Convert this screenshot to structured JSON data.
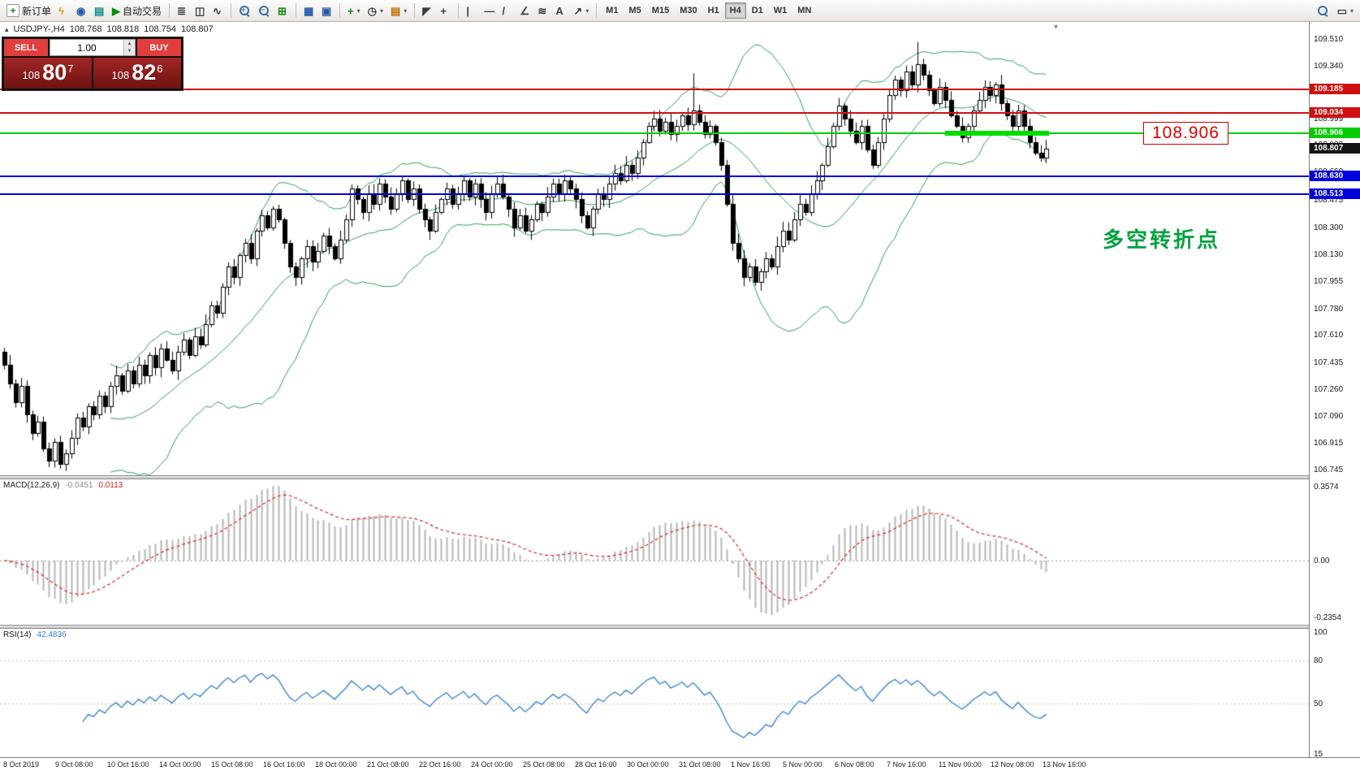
{
  "toolbar": {
    "caret_glyph": "▾",
    "items": [
      {
        "name": "new-order-button",
        "glyph": "+",
        "color": "green",
        "boxed": true,
        "label": "新订单"
      },
      {
        "name": "metaeditor-icon",
        "glyph": "ϟ",
        "color": "yellow"
      },
      {
        "name": "market-watch-icon",
        "glyph": "◉",
        "color": "blue"
      },
      {
        "name": "navigator-icon",
        "glyph": "▤",
        "color": "teal"
      },
      {
        "name": "autotrading-button",
        "glyph": "▶",
        "color": "green",
        "label": "自动交易"
      },
      {
        "sep": true
      },
      {
        "name": "bar-chart-button",
        "glyph": "≣",
        "color": "dark"
      },
      {
        "name": "candlestick-chart-button",
        "glyph": "◫",
        "color": "dark"
      },
      {
        "name": "line-chart-button",
        "glyph": "∿",
        "color": "dark"
      },
      {
        "sep": true
      },
      {
        "name": "zoom-in-button",
        "mag": "+"
      },
      {
        "name": "zoom-out-button",
        "mag": "−"
      },
      {
        "name": "chart-grid-button",
        "glyph": "⊞",
        "color": "green"
      },
      {
        "sep": true
      },
      {
        "name": "tile-windows-button",
        "glyph": "▦",
        "color": "blue"
      },
      {
        "name": "cascade-windows-button",
        "glyph": "▣",
        "color": "blue"
      },
      {
        "sep": true
      },
      {
        "name": "indicators-button",
        "glyph": "+",
        "color": "green",
        "caret": true
      },
      {
        "name": "periods-button",
        "glyph": "◷",
        "color": "dark",
        "caret": true
      },
      {
        "name": "templates-button",
        "glyph": "▤",
        "color": "orange",
        "caret": true
      },
      {
        "sep": true
      },
      {
        "name": "cursor-button",
        "glyph": "◤",
        "color": "dark"
      },
      {
        "name": "crosshair-button",
        "glyph": "+",
        "color": "dark"
      },
      {
        "sep": true
      },
      {
        "name": "vertical-line-button",
        "glyph": "|",
        "color": "dark"
      },
      {
        "name": "horizontal-line-button",
        "glyph": "—",
        "color": "dark"
      },
      {
        "name": "trendline-button",
        "glyph": "/",
        "color": "dark"
      },
      {
        "name": "angle-trendline-button",
        "glyph": "∠",
        "color": "dark"
      },
      {
        "name": "fibonacci-button",
        "glyph": "≋",
        "color": "dark"
      },
      {
        "name": "text-label-button",
        "glyph": "A",
        "color": "dark"
      },
      {
        "name": "arrows-button",
        "glyph": "↗",
        "color": "dark",
        "caret": true
      },
      {
        "sep": true
      }
    ],
    "timeframes": [
      {
        "label": "M1"
      },
      {
        "label": "M5"
      },
      {
        "label": "M15"
      },
      {
        "label": "M30"
      },
      {
        "label": "H1"
      },
      {
        "label": "H4",
        "active": true
      },
      {
        "label": "D1"
      },
      {
        "label": "W1"
      },
      {
        "label": "MN"
      }
    ],
    "right_items": [
      {
        "name": "search-button",
        "mag": ""
      },
      {
        "name": "new-chart-button",
        "glyph": "▭",
        "color": "dark",
        "caret": true
      }
    ]
  },
  "symbol_header": {
    "collapse_glyph": "▴",
    "title": "USDJPY-,H4",
    "open": "108.768",
    "high": "108.818",
    "low": "108.754",
    "close": "108.807"
  },
  "trade_widget": {
    "sell_label": "SELL",
    "buy_label": "BUY",
    "volume": "1.00",
    "spin_up": "▲",
    "spin_down": "▼",
    "sell": {
      "prefix": "108",
      "big": "80",
      "sup": "7"
    },
    "buy": {
      "prefix": "108",
      "big": "82",
      "sup": "6"
    }
  },
  "main_chart": {
    "shift_marker_glyph": "▾",
    "price_scale_ticks": [
      "109.510",
      "109.340",
      "109.170",
      "108.999",
      "108.830",
      "108.660",
      "108.475",
      "108.300",
      "108.130",
      "107.955",
      "107.780",
      "107.610",
      "107.435",
      "107.260",
      "107.090",
      "106.915",
      "106.745"
    ],
    "hlines": [
      {
        "name": "resistance-line-1",
        "price": 109.185,
        "color": "#d01010",
        "width": 2,
        "label": "109.185"
      },
      {
        "name": "resistance-line-2",
        "price": 109.034,
        "color": "#d01010",
        "width": 2,
        "label": "109.034"
      },
      {
        "name": "pivot-line",
        "price": 108.906,
        "color": "#00cc00",
        "width": 2,
        "label": "108.906"
      },
      {
        "name": "support-line-1",
        "price": 108.63,
        "color": "#0000dd",
        "width": 2,
        "label": "108.630"
      },
      {
        "name": "support-line-2",
        "price": 108.513,
        "color": "#0000dd",
        "width": 2,
        "label": "108.513"
      }
    ],
    "current_price": {
      "text": "108.807",
      "price": 108.807,
      "bg": "#141414"
    },
    "green_zone": {
      "price": 108.906,
      "from_index": 168,
      "to_index": 186,
      "color": "#00de00",
      "height": 6
    },
    "callout": {
      "text": "108.906"
    },
    "annotation": {
      "text": "多空转折点"
    }
  },
  "macd": {
    "name": "MACD(12,26,9)",
    "value_main": "-0.0451",
    "value_signal": "0.0113",
    "scale_top": "0.3574",
    "scale_zero": "0.00",
    "scale_bottom": "-0.2354"
  },
  "rsi": {
    "name": "RSI(14)",
    "value": "42.4836",
    "scale": [
      {
        "v": 100,
        "t": "100"
      },
      {
        "v": 80,
        "t": "80"
      },
      {
        "v": 50,
        "t": "50"
      },
      {
        "v": 15,
        "t": "15"
      }
    ],
    "levels": [
      80,
      50
    ]
  },
  "chart_data": {
    "type": "candlestick",
    "symbol": "USDJPY-",
    "timeframe": "H4",
    "price_axis": {
      "min": 106.708,
      "max": 109.62
    },
    "first_open": 107.5,
    "closes": [
      107.42,
      107.3,
      107.18,
      107.28,
      107.1,
      106.98,
      107.05,
      106.88,
      106.8,
      106.92,
      106.78,
      106.85,
      106.95,
      107.08,
      107.02,
      107.15,
      107.1,
      107.22,
      107.15,
      107.28,
      107.35,
      107.25,
      107.38,
      107.3,
      107.42,
      107.35,
      107.48,
      107.4,
      107.52,
      107.45,
      107.38,
      107.5,
      107.58,
      107.48,
      107.6,
      107.55,
      107.68,
      107.8,
      107.75,
      107.92,
      108.05,
      107.98,
      108.12,
      108.2,
      108.1,
      108.28,
      108.38,
      108.3,
      108.42,
      108.35,
      108.2,
      108.05,
      107.98,
      108.1,
      108.18,
      108.08,
      108.15,
      108.25,
      108.18,
      108.1,
      108.22,
      108.35,
      108.55,
      108.48,
      108.4,
      108.52,
      108.45,
      108.58,
      108.5,
      108.42,
      108.52,
      108.6,
      108.48,
      108.55,
      108.42,
      108.35,
      108.28,
      108.4,
      108.48,
      108.55,
      108.45,
      108.52,
      108.6,
      108.5,
      108.58,
      108.48,
      108.4,
      108.52,
      108.58,
      108.5,
      108.42,
      108.3,
      108.38,
      108.28,
      108.35,
      108.45,
      108.4,
      108.5,
      108.58,
      108.52,
      108.6,
      108.55,
      108.48,
      108.38,
      108.3,
      108.42,
      108.52,
      108.48,
      108.58,
      108.65,
      108.6,
      108.7,
      108.65,
      108.75,
      108.85,
      108.95,
      109.0,
      108.92,
      108.98,
      108.9,
      108.95,
      109.02,
      108.96,
      109.05,
      108.98,
      108.9,
      108.95,
      108.85,
      108.7,
      108.45,
      108.2,
      108.1,
      107.98,
      108.05,
      107.95,
      108.02,
      108.1,
      108.05,
      108.18,
      108.28,
      108.22,
      108.35,
      108.45,
      108.4,
      108.52,
      108.6,
      108.7,
      108.82,
      108.95,
      109.08,
      109.0,
      108.92,
      108.85,
      108.95,
      108.8,
      108.7,
      108.85,
      109.0,
      109.15,
      109.25,
      109.18,
      109.3,
      109.22,
      109.35,
      109.28,
      109.18,
      109.1,
      109.2,
      109.12,
      109.02,
      108.95,
      108.88,
      108.95,
      109.05,
      109.12,
      109.2,
      109.15,
      109.22,
      109.1,
      109.02,
      108.95,
      109.05,
      108.95,
      108.85,
      108.78,
      108.75,
      108.807
    ],
    "wick_overrides": {
      "8": {
        "low": 106.76
      },
      "10": {
        "low": 106.75
      },
      "123": {
        "high": 109.29
      },
      "163": {
        "high": 109.49
      }
    },
    "bollinger": {
      "period": 20,
      "deviation": 2
    },
    "indicators": [
      "Bollinger Bands",
      "MACD(12,26,9)",
      "RSI(14)"
    ],
    "time_labels": [
      "8 Oct 2019",
      "9 Oct 08:00",
      "10 Oct 16:00",
      "14 Oct 00:00",
      "15 Oct 08:00",
      "16 Oct 16:00",
      "18 Oct 00:00",
      "21 Oct 08:00",
      "22 Oct 16:00",
      "24 Oct 00:00",
      "25 Oct 08:00",
      "28 Oct 16:00",
      "30 Oct 00:00",
      "31 Oct 08:00",
      "1 Nov 16:00",
      "5 Nov 00:00",
      "6 Nov 08:00",
      "7 Nov 16:00",
      "11 Nov 00:00",
      "12 Nov 08:00",
      "13 Nov 16:00"
    ]
  }
}
